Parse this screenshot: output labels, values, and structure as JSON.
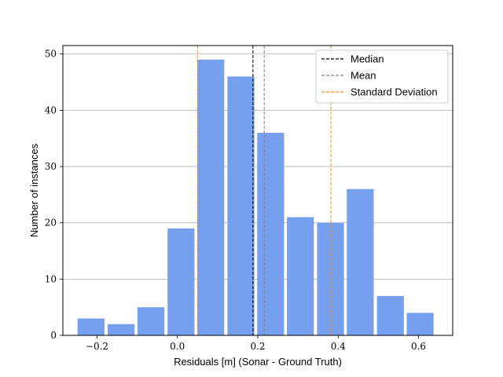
{
  "chart_data": {
    "type": "bar",
    "title": "",
    "xlabel": "Residuals [m] (Sonar - Ground Truth)",
    "ylabel": "Number of instances",
    "xlim": [
      -0.285,
      0.685
    ],
    "ylim": [
      0,
      51.5
    ],
    "bin_width": 0.0744,
    "bins": [
      {
        "center": -0.215,
        "value": 3
      },
      {
        "center": -0.14,
        "value": 2
      },
      {
        "center": -0.066,
        "value": 5
      },
      {
        "center": 0.009,
        "value": 19
      },
      {
        "center": 0.083,
        "value": 49
      },
      {
        "center": 0.158,
        "value": 46
      },
      {
        "center": 0.232,
        "value": 36
      },
      {
        "center": 0.306,
        "value": 21
      },
      {
        "center": 0.381,
        "value": 20
      },
      {
        "center": 0.455,
        "value": 26
      },
      {
        "center": 0.53,
        "value": 7
      },
      {
        "center": 0.604,
        "value": 4
      }
    ],
    "x_ticks": [
      -0.2,
      0.0,
      0.2,
      0.4,
      0.6
    ],
    "x_tick_labels": [
      "−0.2",
      "0.0",
      "0.2",
      "0.4",
      "0.6"
    ],
    "y_ticks": [
      0,
      10,
      20,
      30,
      40,
      50
    ],
    "y_tick_labels": [
      "0",
      "10",
      "20",
      "30",
      "40",
      "50"
    ],
    "grid": "y",
    "bar_color": "#769FEE",
    "vlines": [
      {
        "name": "Median",
        "x": 0.188,
        "color": "#000000"
      },
      {
        "name": "Mean",
        "x": 0.216,
        "color": "#808080"
      },
      {
        "name": "Standard Deviation",
        "x": 0.05,
        "color": "#FF8C1A"
      },
      {
        "name": "Standard Deviation",
        "x": 0.382,
        "color": "#FF8C1A"
      }
    ],
    "legend": {
      "placement": "top-right",
      "entries": [
        {
          "label": "Median",
          "color": "#000000"
        },
        {
          "label": "Mean",
          "color": "#808080"
        },
        {
          "label": "Standard Deviation",
          "color": "#FF8C1A"
        }
      ]
    }
  }
}
